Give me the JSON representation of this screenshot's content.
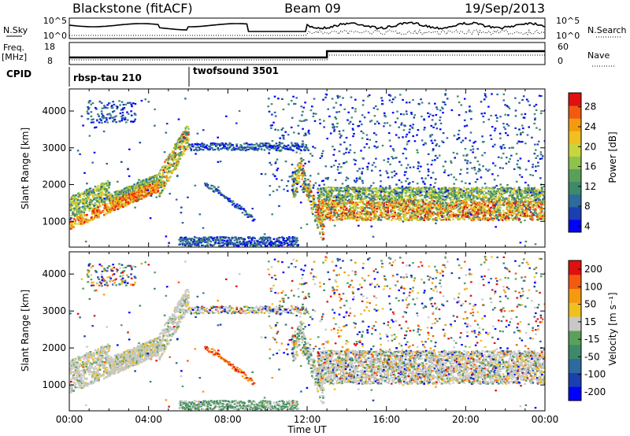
{
  "header": {
    "radar": "Blackstone (fitACF)",
    "beam": "Beam 09",
    "date": "19/Sep/2013"
  },
  "status_panel": {
    "nsky_label": "N.Sky",
    "nsky_ticks": [
      "10^5",
      "10^0"
    ],
    "nsearch_label": "N.Search",
    "nsearch_ticks": [
      "10^5",
      "10^0"
    ],
    "freq_label": "Freq.",
    "freq_unit": "[MHz]",
    "freq_ticks": [
      "18",
      "8"
    ],
    "nave_label": "Nave",
    "nave_ticks": [
      "60",
      "0"
    ],
    "cpid_label": "CPID",
    "cpid_entries": [
      {
        "name": "rbsp-tau 210",
        "start_hour": 0
      },
      {
        "name": "twofsound 3501",
        "start_hour": 6
      }
    ]
  },
  "chart_data": [
    {
      "type": "heatmap",
      "name": "power",
      "ylabel": "Slant Range [km]",
      "xlabel": "Time UT",
      "xlim": [
        0,
        24
      ],
      "ylim": [
        300,
        4600
      ],
      "x_ticks": [
        "00:00",
        "04:00",
        "08:00",
        "12:00",
        "16:00",
        "20:00",
        "00:00"
      ],
      "y_ticks": [
        "1000",
        "2000",
        "3000",
        "4000"
      ],
      "colorbar_label": "Power [dB]",
      "colorbar_ticks": [
        "28",
        "24",
        "20",
        "16",
        "12",
        "8",
        "4"
      ],
      "colors": [
        "#0000ff",
        "#1a3fb0",
        "#2e6a9e",
        "#3d8a6a",
        "#5aa05a",
        "#8cc34d",
        "#c8d63c",
        "#f0c020",
        "#f59a10",
        "#f25a10",
        "#e01010"
      ]
    },
    {
      "type": "heatmap",
      "name": "velocity",
      "ylabel": "Slant Range [km]",
      "xlabel": "Time UT",
      "xlim": [
        0,
        24
      ],
      "ylim": [
        300,
        4600
      ],
      "x_ticks": [
        "00:00",
        "04:00",
        "08:00",
        "12:00",
        "16:00",
        "20:00",
        "00:00"
      ],
      "y_ticks": [
        "1000",
        "2000",
        "3000",
        "4000"
      ],
      "colorbar_label": "Velocity [m s⁻¹]",
      "colorbar_ticks": [
        "200",
        "100",
        "50",
        "15",
        "-15",
        "-50",
        "-100",
        "-200"
      ],
      "colors": [
        "#0000ff",
        "#1a3fb0",
        "#2e6a9e",
        "#3d8a6a",
        "#5aa05a",
        "#c8c8c8",
        "#f0c020",
        "#f59a10",
        "#f25a10",
        "#e01010"
      ]
    }
  ]
}
